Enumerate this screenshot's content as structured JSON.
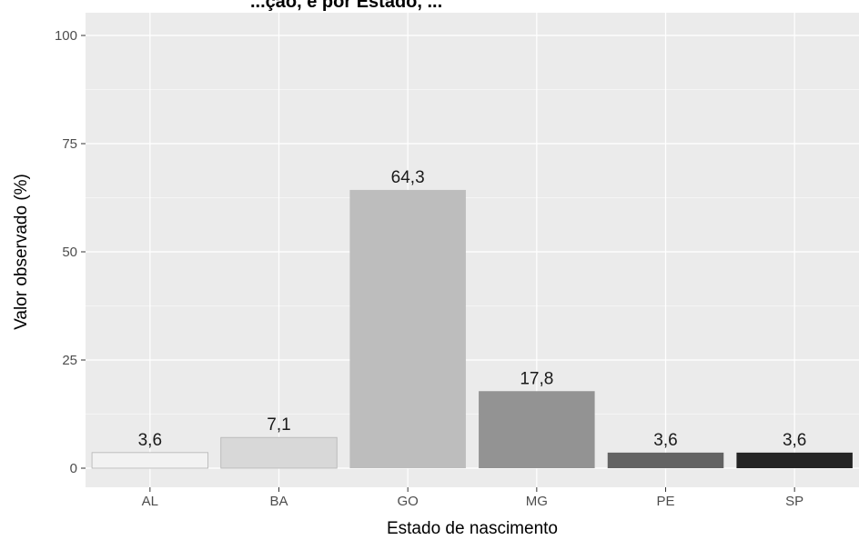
{
  "chart_data": {
    "type": "bar",
    "title": "...ção, e por Estado, ...",
    "xlabel": "Estado de nascimento",
    "ylabel": "Valor observado (%)",
    "categories": [
      "AL",
      "BA",
      "GO",
      "MG",
      "PE",
      "SP"
    ],
    "values": [
      3.6,
      7.1,
      64.3,
      17.8,
      3.6,
      3.6
    ],
    "value_labels": [
      "3,6",
      "7,1",
      "64,3",
      "17,8",
      "3,6",
      "3,6"
    ],
    "bar_colors": [
      "#f2f2f2",
      "#d8d8d8",
      "#bdbdbd",
      "#939393",
      "#636363",
      "#252525"
    ],
    "ylim": [
      0,
      100
    ],
    "yticks": [
      0,
      25,
      50,
      75,
      100
    ],
    "ytick_labels": [
      "0",
      "25",
      "50",
      "75",
      "100"
    ],
    "grid": true,
    "legend": "none",
    "panel_background": "#ebebeb",
    "grid_color": "#ffffff"
  }
}
